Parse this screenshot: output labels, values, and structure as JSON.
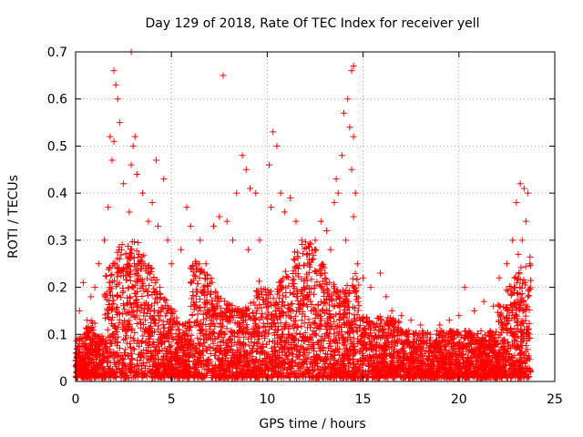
{
  "chart_data": {
    "type": "scatter",
    "title": "Day 129 of 2018, Rate Of TEC Index for receiver yell",
    "xlabel": "GPS time / hours",
    "ylabel": "ROTI / TECUs",
    "xlim": [
      0,
      25
    ],
    "ylim": [
      0,
      0.7
    ],
    "xticks": [
      0,
      5,
      10,
      15,
      20,
      25
    ],
    "yticks": [
      0,
      0.1,
      0.2,
      0.3,
      0.4,
      0.5,
      0.6,
      0.7
    ],
    "xtick_labels": [
      "0",
      "5",
      "10",
      "15",
      "20",
      "25"
    ],
    "ytick_labels": [
      "0",
      "0.1",
      "0.2",
      "0.3",
      "0.4",
      "0.5",
      "0.6",
      "0.7"
    ],
    "grid": true,
    "marker": "+",
    "color": "#ff0000",
    "series": [
      {
        "name": "ROTI",
        "points": [
          [
            2.0,
            0.66
          ],
          [
            2.1,
            0.63
          ],
          [
            2.2,
            0.6
          ],
          [
            2.3,
            0.55
          ],
          [
            1.8,
            0.52
          ],
          [
            2.0,
            0.51
          ],
          [
            2.9,
            0.7
          ],
          [
            3.1,
            0.52
          ],
          [
            3.0,
            0.5
          ],
          [
            2.9,
            0.46
          ],
          [
            3.2,
            0.44
          ],
          [
            4.2,
            0.47
          ],
          [
            4.6,
            0.43
          ],
          [
            1.9,
            0.47
          ],
          [
            2.5,
            0.42
          ],
          [
            3.5,
            0.4
          ],
          [
            4.0,
            0.38
          ],
          [
            2.8,
            0.36
          ],
          [
            1.7,
            0.37
          ],
          [
            3.8,
            0.34
          ],
          [
            4.3,
            0.33
          ],
          [
            4.8,
            0.3
          ],
          [
            1.5,
            0.3
          ],
          [
            2.4,
            0.28
          ],
          [
            3.3,
            0.27
          ],
          [
            5.0,
            0.25
          ],
          [
            1.2,
            0.25
          ],
          [
            0.4,
            0.21
          ],
          [
            1.0,
            0.2
          ],
          [
            0.8,
            0.18
          ],
          [
            0.2,
            0.15
          ],
          [
            0.6,
            0.13
          ],
          [
            5.8,
            0.37
          ],
          [
            6.0,
            0.33
          ],
          [
            6.5,
            0.3
          ],
          [
            5.5,
            0.28
          ],
          [
            6.8,
            0.25
          ],
          [
            7.2,
            0.33
          ],
          [
            7.5,
            0.35
          ],
          [
            7.7,
            0.65
          ],
          [
            7.9,
            0.34
          ],
          [
            8.4,
            0.4
          ],
          [
            8.7,
            0.48
          ],
          [
            8.9,
            0.45
          ],
          [
            9.1,
            0.41
          ],
          [
            9.4,
            0.4
          ],
          [
            8.2,
            0.3
          ],
          [
            9.0,
            0.28
          ],
          [
            9.6,
            0.3
          ],
          [
            10.1,
            0.46
          ],
          [
            10.3,
            0.53
          ],
          [
            10.5,
            0.5
          ],
          [
            10.7,
            0.4
          ],
          [
            10.2,
            0.37
          ],
          [
            10.9,
            0.36
          ],
          [
            11.2,
            0.39
          ],
          [
            11.5,
            0.34
          ],
          [
            11.8,
            0.3
          ],
          [
            12.1,
            0.27
          ],
          [
            12.5,
            0.3
          ],
          [
            12.8,
            0.34
          ],
          [
            13.1,
            0.32
          ],
          [
            13.3,
            0.28
          ],
          [
            13.5,
            0.38
          ],
          [
            13.7,
            0.4
          ],
          [
            13.9,
            0.48
          ],
          [
            14.0,
            0.57
          ],
          [
            14.2,
            0.6
          ],
          [
            14.4,
            0.66
          ],
          [
            14.5,
            0.67
          ],
          [
            14.3,
            0.54
          ],
          [
            14.5,
            0.52
          ],
          [
            14.4,
            0.45
          ],
          [
            14.6,
            0.4
          ],
          [
            14.5,
            0.35
          ],
          [
            13.6,
            0.43
          ],
          [
            14.1,
            0.3
          ],
          [
            14.7,
            0.25
          ],
          [
            15.0,
            0.22
          ],
          [
            15.4,
            0.2
          ],
          [
            15.9,
            0.23
          ],
          [
            16.2,
            0.18
          ],
          [
            16.5,
            0.15
          ],
          [
            17.0,
            0.14
          ],
          [
            17.5,
            0.13
          ],
          [
            18.0,
            0.12
          ],
          [
            18.5,
            0.1
          ],
          [
            19.0,
            0.12
          ],
          [
            19.5,
            0.13
          ],
          [
            20.0,
            0.14
          ],
          [
            20.3,
            0.2
          ],
          [
            20.8,
            0.15
          ],
          [
            21.3,
            0.17
          ],
          [
            21.8,
            0.16
          ],
          [
            22.1,
            0.22
          ],
          [
            22.5,
            0.25
          ],
          [
            22.8,
            0.3
          ],
          [
            23.0,
            0.38
          ],
          [
            23.2,
            0.42
          ],
          [
            23.4,
            0.41
          ],
          [
            23.6,
            0.4
          ],
          [
            23.5,
            0.34
          ],
          [
            23.3,
            0.3
          ],
          [
            23.1,
            0.27
          ],
          [
            23.7,
            0.25
          ],
          [
            22.9,
            0.22
          ],
          [
            23.6,
            0.18
          ]
        ]
      }
    ]
  }
}
